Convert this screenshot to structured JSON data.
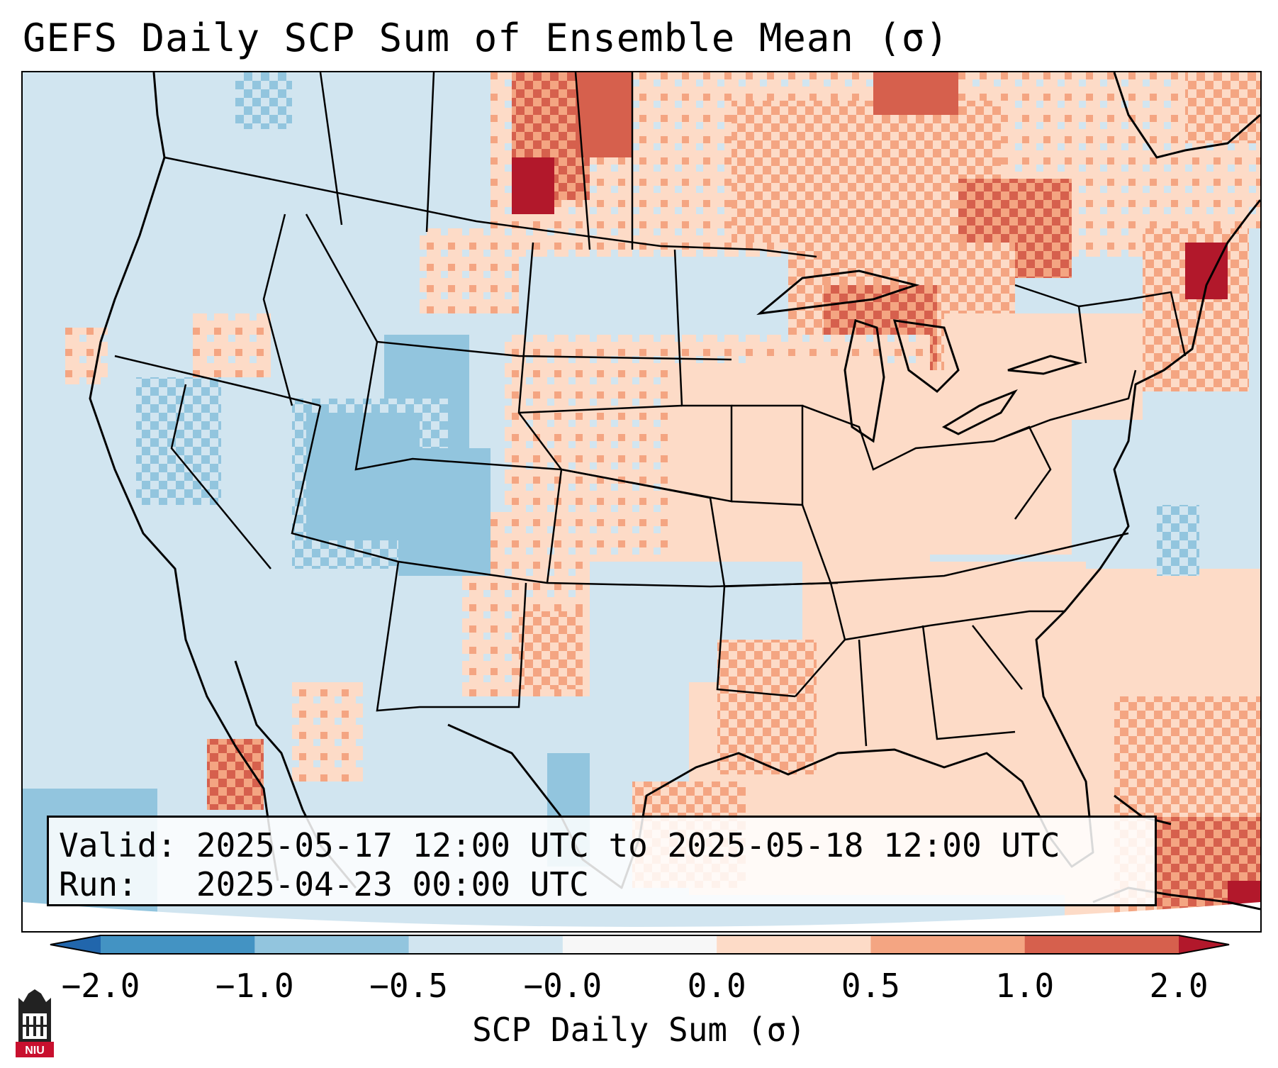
{
  "title": "GEFS Daily SCP Sum of Ensemble Mean (σ)",
  "info": {
    "valid_label": "Valid:",
    "valid_value": "2025-05-17 12:00 UTC to 2025-05-18 12:00 UTC",
    "run_label": "Run:",
    "run_value": "2025-04-23 00:00 UTC"
  },
  "colorbar": {
    "label": "SCP Daily Sum (σ)",
    "ticks": [
      "−2.0",
      "−1.0",
      "−0.5",
      "−0.0",
      "0.0",
      "0.5",
      "1.0",
      "2.0"
    ],
    "bins": [
      {
        "range": "< -2.0",
        "color": "#2166ac"
      },
      {
        "range": "-2.0 to -1.0",
        "color": "#4393c3"
      },
      {
        "range": "-1.0 to -0.5",
        "color": "#92c5de"
      },
      {
        "range": "-0.5 to -0.0",
        "color": "#d1e5f0"
      },
      {
        "range": "-0.0 to 0.0",
        "color": "#f7f7f7"
      },
      {
        "range": "0.0 to 0.5",
        "color": "#fddbc7"
      },
      {
        "range": "0.5 to 1.0",
        "color": "#f4a582"
      },
      {
        "range": "1.0 to 2.0",
        "color": "#d6604d"
      },
      {
        "range": "> 2.0",
        "color": "#b2182b"
      }
    ]
  },
  "logo": {
    "text": "NIU",
    "color": "#c8102e"
  }
}
